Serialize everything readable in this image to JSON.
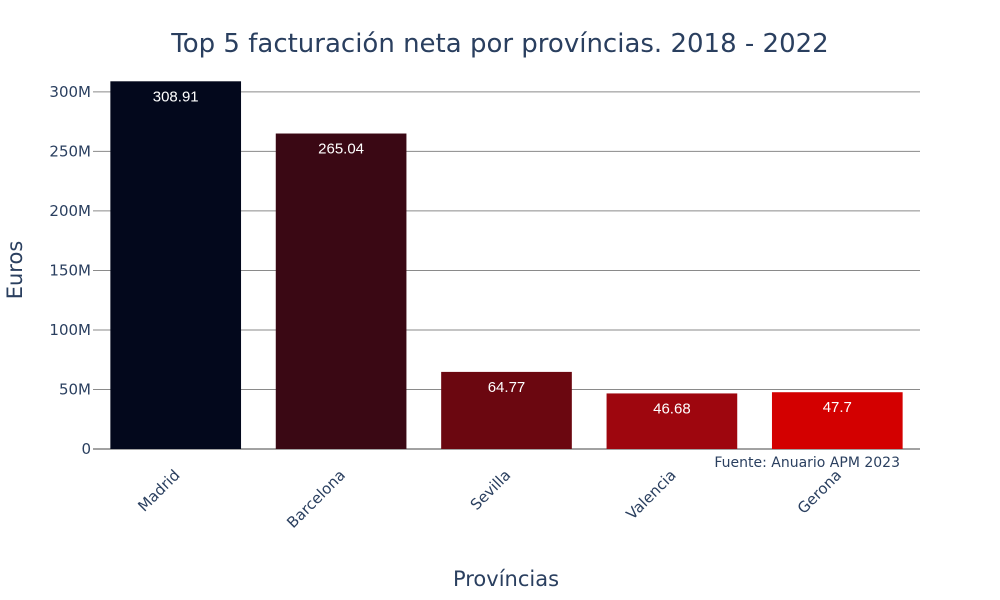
{
  "chart_data": {
    "type": "bar",
    "title": "Top 5 facturación neta por províncias. 2018 - 2022",
    "xlabel": "Províncias",
    "ylabel": "Euros",
    "categories": [
      "Madrid",
      "Barcelona",
      "Sevilla",
      "Valencia",
      "Gerona"
    ],
    "values": [
      308.91,
      265.04,
      64.77,
      46.68,
      47.7
    ],
    "value_labels": [
      "308.91",
      "265.04",
      "64.77",
      "46.68",
      "47.7"
    ],
    "colors": [
      "#03081c",
      "#3a0814",
      "#6b0710",
      "#9e060e",
      "#d30000"
    ],
    "ylim": [
      0,
      310
    ],
    "y_ticks": [
      0,
      50,
      100,
      150,
      200,
      250,
      300
    ],
    "y_tick_labels": [
      "0",
      "50M",
      "100M",
      "150M",
      "200M",
      "250M",
      "300M"
    ],
    "grid": true,
    "legend": "none",
    "annotation": "Fuente: Anuario APM 2023"
  }
}
